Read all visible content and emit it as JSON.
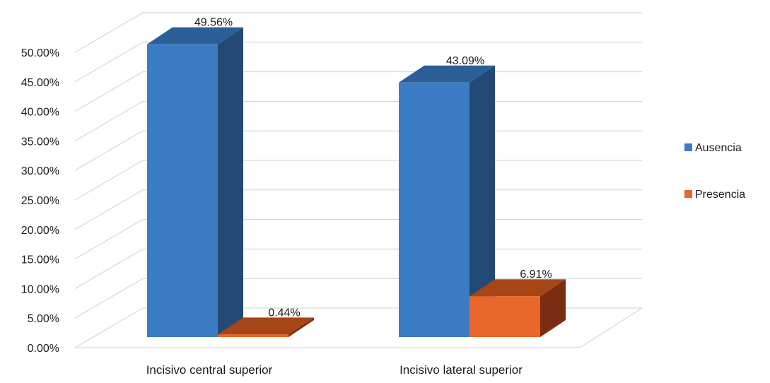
{
  "chart_data": {
    "type": "bar",
    "categories": [
      "Incisivo central superior",
      "Incisivo lateral superior"
    ],
    "series": [
      {
        "name": "Ausencia",
        "values": [
          49.56,
          43.09
        ],
        "value_labels": [
          "49.56%",
          "43.09%"
        ],
        "color": "#3b7cc4",
        "side_color": "#234a74",
        "top_color": "#2c5f97"
      },
      {
        "name": "Presencia",
        "values": [
          0.44,
          6.91
        ],
        "value_labels": [
          "0.44%",
          "6.91%"
        ],
        "color": "#e8672a",
        "side_color": "#7a2d10",
        "top_color": "#a64516"
      }
    ],
    "ylim": [
      0,
      50
    ],
    "yticks": [
      0,
      5,
      10,
      15,
      20,
      25,
      30,
      35,
      40,
      45,
      50
    ],
    "ytick_labels": [
      "0.00%",
      "5.00%",
      "10.00%",
      "15.00%",
      "20.00%",
      "25.00%",
      "30.00%",
      "35.00%",
      "40.00%",
      "45.00%",
      "50.00%"
    ],
    "grid": true,
    "legend_position": "right",
    "style": "3d-clustered-column"
  }
}
